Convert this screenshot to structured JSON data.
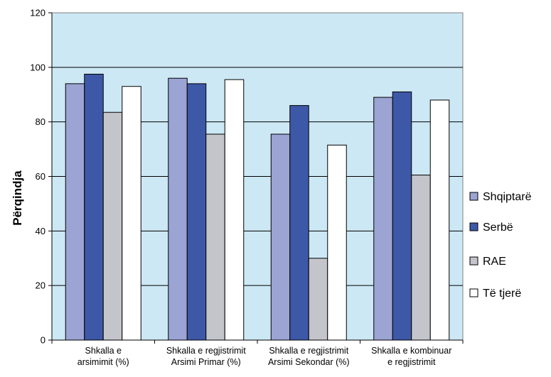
{
  "chart_data": {
    "type": "bar",
    "ylabel": "Përqindja",
    "xlabel": "",
    "title": "",
    "ylim": [
      0,
      120
    ],
    "yticks": [
      0,
      20,
      40,
      60,
      80,
      100,
      120
    ],
    "grid": true,
    "legend_position": "right",
    "categories": [
      [
        "Shkalla e",
        "arsimimit (%)"
      ],
      [
        "Shkalla e regjistrimit",
        "Arsimi Primar (%)"
      ],
      [
        "Shkalla e regjistrimit",
        "Arsimi Sekondar (%)"
      ],
      [
        "Shkalla e kombinuar",
        "e regjistrimit"
      ]
    ],
    "series": [
      {
        "name": "Shqiptarë",
        "color": "#9ca4d4",
        "values": [
          94,
          96,
          75.5,
          89
        ]
      },
      {
        "name": "Serbë",
        "color": "#3d58a7",
        "values": [
          97.5,
          94,
          86,
          91
        ]
      },
      {
        "name": "RAE",
        "color": "#c3c5cb",
        "values": [
          83.5,
          75.5,
          30,
          60.5
        ]
      },
      {
        "name": "Të tjerë",
        "color": "#ffffff",
        "values": [
          93,
          95.5,
          71.5,
          88
        ]
      }
    ],
    "plot_background": "#cce8f4"
  }
}
